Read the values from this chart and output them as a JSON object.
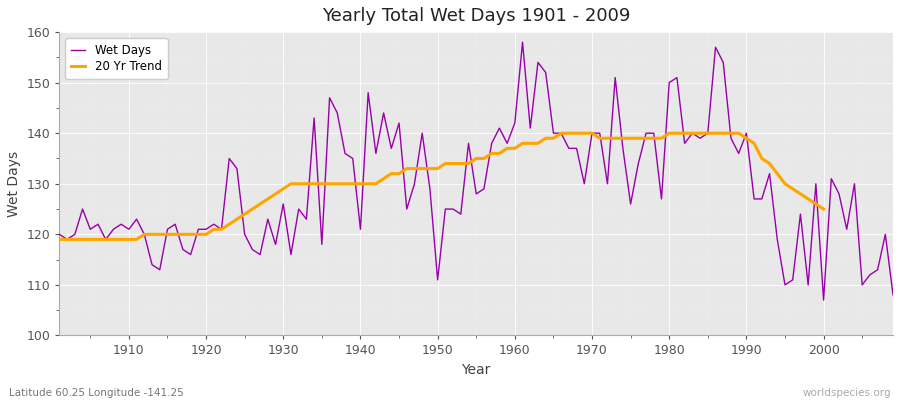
{
  "title": "Yearly Total Wet Days 1901 - 2009",
  "xlabel": "Year",
  "ylabel": "Wet Days",
  "subtitle": "Latitude 60.25 Longitude -141.25",
  "credit": "worldspecies.org",
  "ylim": [
    100,
    160
  ],
  "xlim": [
    1901,
    2009
  ],
  "yticks": [
    100,
    110,
    120,
    130,
    140,
    150,
    160
  ],
  "line_color": "#9900aa",
  "trend_color": "#ffa500",
  "bg_color": "#e8e8e8",
  "fig_color": "#ffffff",
  "years": [
    1901,
    1902,
    1903,
    1904,
    1905,
    1906,
    1907,
    1908,
    1909,
    1910,
    1911,
    1912,
    1913,
    1914,
    1915,
    1916,
    1917,
    1918,
    1919,
    1920,
    1921,
    1922,
    1923,
    1924,
    1925,
    1926,
    1927,
    1928,
    1929,
    1930,
    1931,
    1932,
    1933,
    1934,
    1935,
    1936,
    1937,
    1938,
    1939,
    1940,
    1941,
    1942,
    1943,
    1944,
    1945,
    1946,
    1947,
    1948,
    1949,
    1950,
    1951,
    1952,
    1953,
    1954,
    1955,
    1956,
    1957,
    1958,
    1959,
    1960,
    1961,
    1962,
    1963,
    1964,
    1965,
    1966,
    1967,
    1968,
    1969,
    1970,
    1971,
    1972,
    1973,
    1974,
    1975,
    1976,
    1977,
    1978,
    1979,
    1980,
    1981,
    1982,
    1983,
    1984,
    1985,
    1986,
    1987,
    1988,
    1989,
    1990,
    1991,
    1992,
    1993,
    1994,
    1995,
    1996,
    1997,
    1998,
    1999,
    2000,
    2001,
    2002,
    2003,
    2004,
    2005,
    2006,
    2007,
    2008,
    2009
  ],
  "wet_days": [
    120,
    119,
    120,
    125,
    121,
    122,
    119,
    121,
    122,
    121,
    123,
    120,
    114,
    113,
    121,
    122,
    117,
    116,
    121,
    121,
    122,
    121,
    135,
    133,
    120,
    117,
    116,
    123,
    118,
    126,
    116,
    125,
    123,
    143,
    118,
    147,
    144,
    136,
    135,
    121,
    148,
    136,
    144,
    137,
    142,
    125,
    130,
    140,
    129,
    111,
    125,
    125,
    124,
    138,
    128,
    129,
    138,
    141,
    138,
    142,
    158,
    141,
    154,
    152,
    140,
    140,
    137,
    137,
    130,
    140,
    140,
    130,
    151,
    137,
    126,
    134,
    140,
    140,
    127,
    150,
    151,
    138,
    140,
    139,
    140,
    157,
    154,
    139,
    136,
    140,
    127,
    127,
    132,
    119,
    110,
    111,
    124,
    110,
    130,
    107,
    131,
    128,
    121,
    130,
    110,
    112,
    113,
    120,
    108
  ],
  "trend": [
    119,
    119,
    119,
    119,
    119,
    119,
    119,
    119,
    119,
    119,
    119,
    120,
    120,
    120,
    120,
    120,
    120,
    120,
    120,
    120,
    121,
    121,
    122,
    123,
    124,
    125,
    126,
    127,
    128,
    129,
    130,
    130,
    130,
    130,
    130,
    130,
    130,
    130,
    130,
    130,
    130,
    130,
    131,
    132,
    132,
    133,
    133,
    133,
    133,
    133,
    134,
    134,
    134,
    134,
    135,
    135,
    136,
    136,
    137,
    137,
    138,
    138,
    138,
    139,
    139,
    140,
    140,
    140,
    140,
    140,
    139,
    139,
    139,
    139,
    139,
    139,
    139,
    139,
    139,
    140,
    140,
    140,
    140,
    140,
    140,
    140,
    140,
    140,
    140,
    139,
    138,
    135,
    134,
    132,
    130,
    129,
    128,
    127,
    126,
    125,
    null,
    null,
    null,
    null,
    null,
    null,
    null,
    null,
    null
  ],
  "xticks": [
    1910,
    1920,
    1930,
    1940,
    1950,
    1960,
    1970,
    1980,
    1990,
    2000
  ]
}
